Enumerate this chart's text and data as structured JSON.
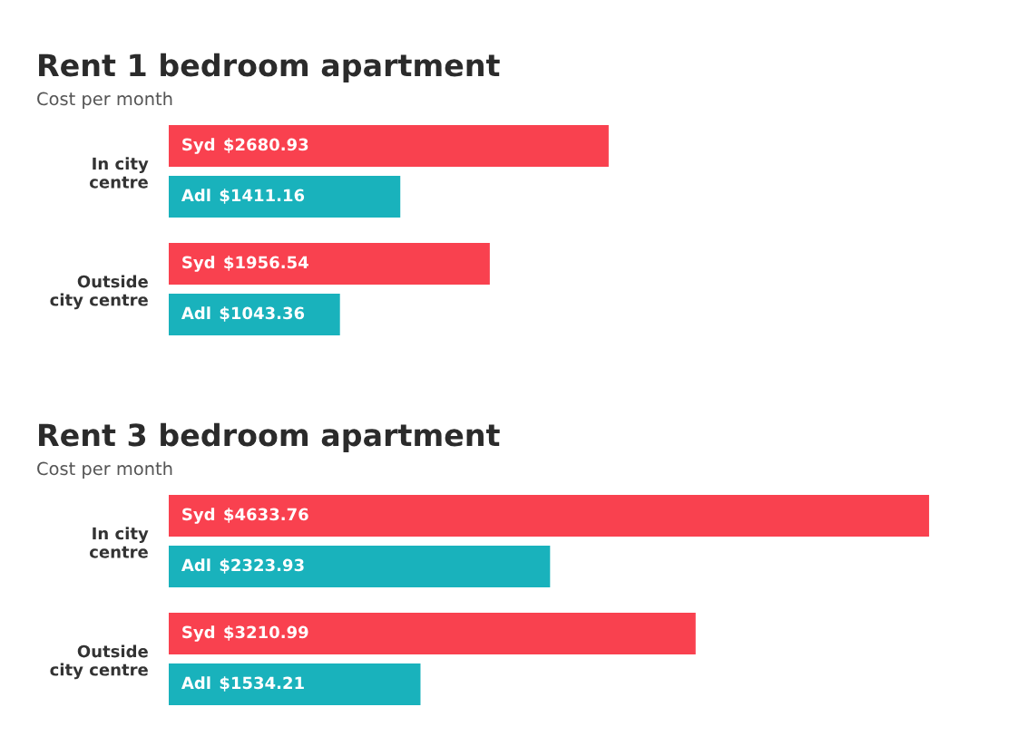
{
  "chart_data": [
    {
      "type": "bar",
      "orientation": "horizontal",
      "title": "Rent 1 bedroom apartment",
      "subtitle": "Cost per month",
      "categories": [
        "In city\ncentre",
        "Outside\ncity centre"
      ],
      "series": [
        {
          "name": "Syd",
          "color": "#f9414f",
          "values": [
            2680.93,
            1956.54
          ],
          "value_labels": [
            "$2680.93",
            "$1956.54"
          ]
        },
        {
          "name": "Adl",
          "color": "#19b2bc",
          "values": [
            1411.16,
            1043.36
          ],
          "value_labels": [
            "$1411.16",
            "$1043.36"
          ]
        }
      ],
      "tick_labels": "y"
    },
    {
      "type": "bar",
      "orientation": "horizontal",
      "title": "Rent 3 bedroom apartment",
      "subtitle": "Cost per month",
      "categories": [
        "In city\ncentre",
        "Outside\ncity centre"
      ],
      "series": [
        {
          "name": "Syd",
          "color": "#f9414f",
          "values": [
            4633.76,
            3210.99
          ],
          "value_labels": [
            "$4633.76",
            "$3210.99"
          ]
        },
        {
          "name": "Adl",
          "color": "#19b2bc",
          "values": [
            2323.93,
            1534.21
          ],
          "value_labels": [
            "$2323.93",
            "$1534.21"
          ]
        }
      ],
      "tick_labels": "y"
    }
  ]
}
